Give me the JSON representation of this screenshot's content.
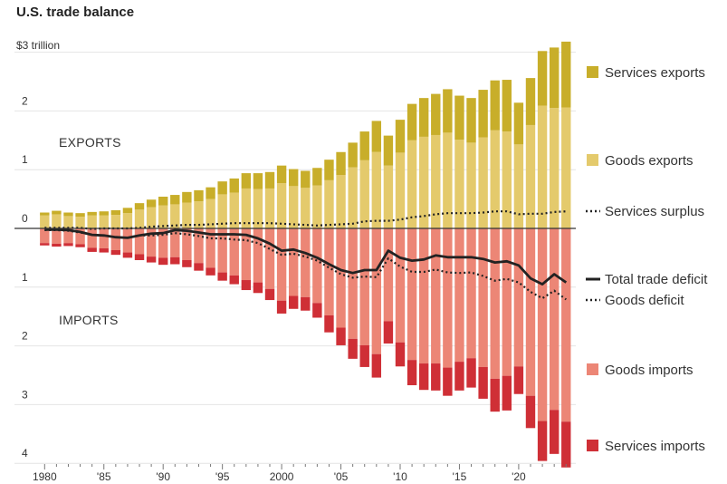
{
  "chart_data": {
    "type": "bar",
    "title": "U.S. trade balance",
    "unit_label": "$3 trillion",
    "section_labels": {
      "exports": "EXPORTS",
      "imports": "IMPORTS"
    },
    "x_tick_labels": [
      "1980",
      "'85",
      "'90",
      "'95",
      "2000",
      "'05",
      "'10",
      "'15",
      "'20"
    ],
    "y_tick_labels_top": [
      "2",
      "1",
      "0"
    ],
    "y_tick_labels_bottom": [
      "1",
      "2",
      "3",
      "4"
    ],
    "ylim": [
      -4.1,
      3.1
    ],
    "colors": {
      "services_exports": "#c8ae2a",
      "goods_exports": "#e4ca6c",
      "goods_imports": "#ec8676",
      "services_imports": "#cf2f36",
      "line": "#222222"
    },
    "legend": {
      "services_exports": "Services exports",
      "goods_exports": "Goods exports",
      "services_surplus": "Services surplus",
      "total_deficit": "Total trade deficit",
      "goods_deficit": "Goods deficit",
      "goods_imports": "Goods imports",
      "services_imports": "Services imports"
    },
    "years": [
      1980,
      1981,
      1982,
      1983,
      1984,
      1985,
      1986,
      1987,
      1988,
      1989,
      1990,
      1991,
      1992,
      1993,
      1994,
      1995,
      1996,
      1997,
      1998,
      1999,
      2000,
      2001,
      2002,
      2003,
      2004,
      2005,
      2006,
      2007,
      2008,
      2009,
      2010,
      2011,
      2012,
      2013,
      2014,
      2015,
      2016,
      2017,
      2018,
      2019,
      2020,
      2021,
      2022,
      2023,
      2024
    ],
    "goods_exports": [
      0.22,
      0.24,
      0.21,
      0.2,
      0.22,
      0.22,
      0.23,
      0.26,
      0.32,
      0.36,
      0.39,
      0.41,
      0.44,
      0.46,
      0.5,
      0.58,
      0.61,
      0.68,
      0.67,
      0.68,
      0.77,
      0.72,
      0.69,
      0.73,
      0.82,
      0.91,
      1.04,
      1.16,
      1.3,
      1.07,
      1.29,
      1.5,
      1.56,
      1.59,
      1.63,
      1.51,
      1.46,
      1.55,
      1.67,
      1.65,
      1.43,
      1.76,
      2.09,
      2.05,
      2.06
    ],
    "services_exports": [
      0.05,
      0.06,
      0.06,
      0.06,
      0.06,
      0.07,
      0.08,
      0.09,
      0.11,
      0.13,
      0.15,
      0.16,
      0.18,
      0.19,
      0.2,
      0.22,
      0.24,
      0.26,
      0.27,
      0.28,
      0.3,
      0.29,
      0.29,
      0.3,
      0.35,
      0.39,
      0.42,
      0.49,
      0.53,
      0.51,
      0.56,
      0.62,
      0.66,
      0.7,
      0.74,
      0.75,
      0.76,
      0.81,
      0.85,
      0.88,
      0.71,
      0.8,
      0.93,
      1.03,
      1.12
    ],
    "goods_imports": [
      0.25,
      0.26,
      0.25,
      0.27,
      0.33,
      0.34,
      0.37,
      0.41,
      0.44,
      0.48,
      0.5,
      0.49,
      0.54,
      0.59,
      0.67,
      0.75,
      0.8,
      0.88,
      0.92,
      1.03,
      1.23,
      1.15,
      1.17,
      1.27,
      1.48,
      1.69,
      1.88,
      1.99,
      2.14,
      1.58,
      1.94,
      2.24,
      2.3,
      2.3,
      2.37,
      2.27,
      2.21,
      2.36,
      2.56,
      2.51,
      2.35,
      2.85,
      3.28,
      3.09,
      3.29
    ],
    "services_imports": [
      0.04,
      0.05,
      0.05,
      0.05,
      0.07,
      0.07,
      0.08,
      0.09,
      0.1,
      0.1,
      0.12,
      0.12,
      0.12,
      0.13,
      0.13,
      0.14,
      0.15,
      0.17,
      0.18,
      0.19,
      0.22,
      0.22,
      0.23,
      0.25,
      0.29,
      0.3,
      0.34,
      0.37,
      0.4,
      0.38,
      0.41,
      0.43,
      0.45,
      0.46,
      0.48,
      0.49,
      0.5,
      0.54,
      0.56,
      0.59,
      0.47,
      0.55,
      0.68,
      0.75,
      0.78
    ],
    "total_deficit": [
      0.02,
      0.02,
      0.03,
      0.06,
      0.11,
      0.12,
      0.15,
      0.16,
      0.12,
      0.09,
      0.08,
      0.03,
      0.04,
      0.07,
      0.1,
      0.1,
      0.1,
      0.11,
      0.17,
      0.26,
      0.38,
      0.36,
      0.42,
      0.5,
      0.61,
      0.71,
      0.76,
      0.71,
      0.71,
      0.38,
      0.5,
      0.55,
      0.53,
      0.46,
      0.49,
      0.49,
      0.49,
      0.52,
      0.58,
      0.56,
      0.63,
      0.85,
      0.95,
      0.78,
      0.92
    ],
    "goods_deficit": [
      0.03,
      0.03,
      0.04,
      0.07,
      0.11,
      0.12,
      0.15,
      0.16,
      0.12,
      0.12,
      0.11,
      0.08,
      0.1,
      0.13,
      0.17,
      0.17,
      0.19,
      0.2,
      0.25,
      0.35,
      0.45,
      0.43,
      0.48,
      0.55,
      0.67,
      0.78,
      0.84,
      0.82,
      0.83,
      0.51,
      0.65,
      0.74,
      0.74,
      0.7,
      0.75,
      0.76,
      0.75,
      0.81,
      0.89,
      0.86,
      0.92,
      1.08,
      1.19,
      1.06,
      1.21
    ],
    "services_surplus": [
      0.01,
      0.01,
      0.01,
      0.01,
      -0.01,
      0.0,
      0.0,
      0.0,
      0.01,
      0.03,
      0.04,
      0.05,
      0.06,
      0.06,
      0.07,
      0.08,
      0.09,
      0.09,
      0.09,
      0.09,
      0.08,
      0.07,
      0.06,
      0.05,
      0.06,
      0.07,
      0.08,
      0.12,
      0.13,
      0.13,
      0.15,
      0.19,
      0.21,
      0.24,
      0.26,
      0.26,
      0.26,
      0.27,
      0.29,
      0.29,
      0.24,
      0.25,
      0.25,
      0.28,
      0.29
    ]
  }
}
